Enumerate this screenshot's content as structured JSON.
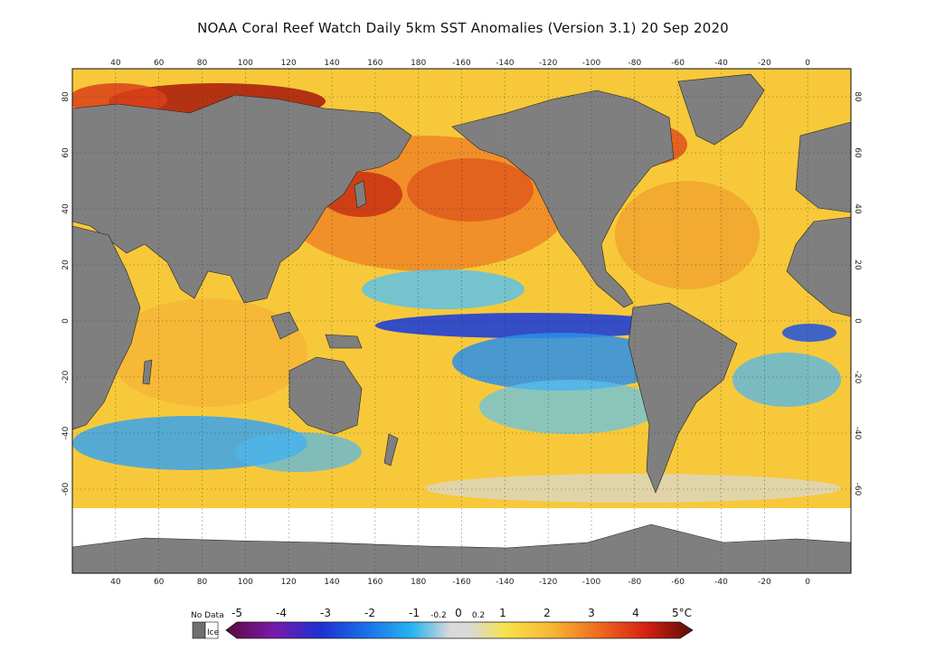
{
  "title": "NOAA Coral Reef Watch Daily 5km SST Anomalies (Version 3.1)  20 Sep 2020",
  "map": {
    "projection": "equirectangular",
    "lon_range": [
      20,
      380
    ],
    "lat_range": [
      -90,
      90
    ],
    "top_lon_ticks": [
      "40",
      "60",
      "80",
      "100",
      "120",
      "140",
      "160",
      "180",
      "-160",
      "-140",
      "-120",
      "-100",
      "-80",
      "-60",
      "-40",
      "-20",
      "0"
    ],
    "bottom_lon_ticks": [
      "40",
      "60",
      "80",
      "100",
      "120",
      "140",
      "160",
      "180",
      "-160",
      "-140",
      "-120",
      "-100",
      "-80",
      "-60",
      "-40",
      "-20",
      "0"
    ],
    "lat_ticks": [
      "80",
      "60",
      "40",
      "20",
      "0",
      "-20",
      "-40",
      "-60"
    ],
    "grid": "dotted",
    "land_color": "#7f7f7f",
    "ice_color": "#ffffff"
  },
  "colorbar": {
    "no_data_label": "No Data",
    "ice_label": "Ice",
    "unit": "°C",
    "labels": [
      "-5",
      "-4",
      "-3",
      "-2",
      "-1",
      "-0.2",
      "0",
      "0.2",
      "1",
      "2",
      "3",
      "4",
      "5°C"
    ],
    "stops": [
      {
        "v": -5,
        "c": "#5a0b3f"
      },
      {
        "v": -4,
        "c": "#7a1aa8"
      },
      {
        "v": -3,
        "c": "#1f2fd0"
      },
      {
        "v": -2,
        "c": "#1a6fe8"
      },
      {
        "v": -1,
        "c": "#28b5f0"
      },
      {
        "v": -0.2,
        "c": "#d9d9d9"
      },
      {
        "v": 0.2,
        "c": "#d9d9d9"
      },
      {
        "v": 1,
        "c": "#f7e24a"
      },
      {
        "v": 2,
        "c": "#f7b532"
      },
      {
        "v": 3,
        "c": "#ef6a1f"
      },
      {
        "v": 4,
        "c": "#d62013"
      },
      {
        "v": 5,
        "c": "#5a0e06"
      }
    ]
  }
}
